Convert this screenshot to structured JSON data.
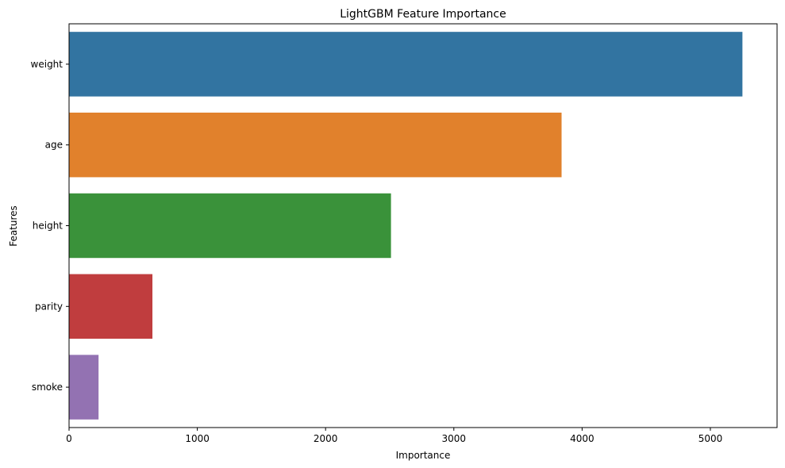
{
  "chart_data": {
    "type": "bar",
    "orientation": "horizontal",
    "title": "LightGBM Feature Importance",
    "xlabel": "Importance",
    "ylabel": "Features",
    "categories": [
      "weight",
      "age",
      "height",
      "parity",
      "smoke"
    ],
    "values": [
      5250,
      3840,
      2510,
      650,
      230
    ],
    "colors": [
      "#3274a1",
      "#e1812c",
      "#3a923a",
      "#c03d3e",
      "#9372b2"
    ],
    "xlim": [
      0,
      5520
    ],
    "xticks": [
      0,
      1000,
      2000,
      3000,
      4000,
      5000
    ],
    "xtick_labels": [
      "0",
      "1000",
      "2000",
      "3000",
      "4000",
      "5000"
    ],
    "grid": false,
    "legend": false
  }
}
